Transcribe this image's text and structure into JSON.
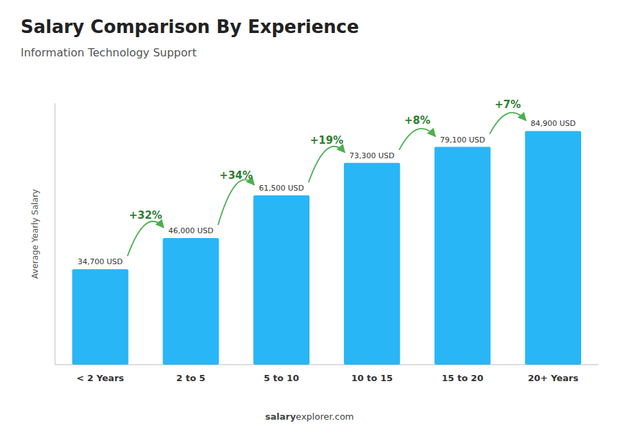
{
  "chart_data": {
    "type": "bar",
    "title": "Salary Comparison By Experience",
    "subtitle": "Information Technology Support",
    "ylabel": "Average Yearly Salary",
    "categories": [
      "< 2 Years",
      "2 to 5",
      "5 to 10",
      "10 to 15",
      "15 to 20",
      "20+ Years"
    ],
    "values": [
      34700,
      46000,
      61500,
      73300,
      79100,
      84900
    ],
    "value_labels": [
      "34,700 USD",
      "46,000 USD",
      "61,500 USD",
      "73,300 USD",
      "79,100 USD",
      "84,900 USD"
    ],
    "data_labels": true,
    "annotations": [
      "+32%",
      "+34%",
      "+19%",
      "+8%",
      "+7%"
    ],
    "footer": [
      "salary",
      "explorer.com"
    ],
    "color": "#29b6f6",
    "ylim": [
      0,
      95000
    ],
    "tick_labels": "x",
    "grid": false
  }
}
